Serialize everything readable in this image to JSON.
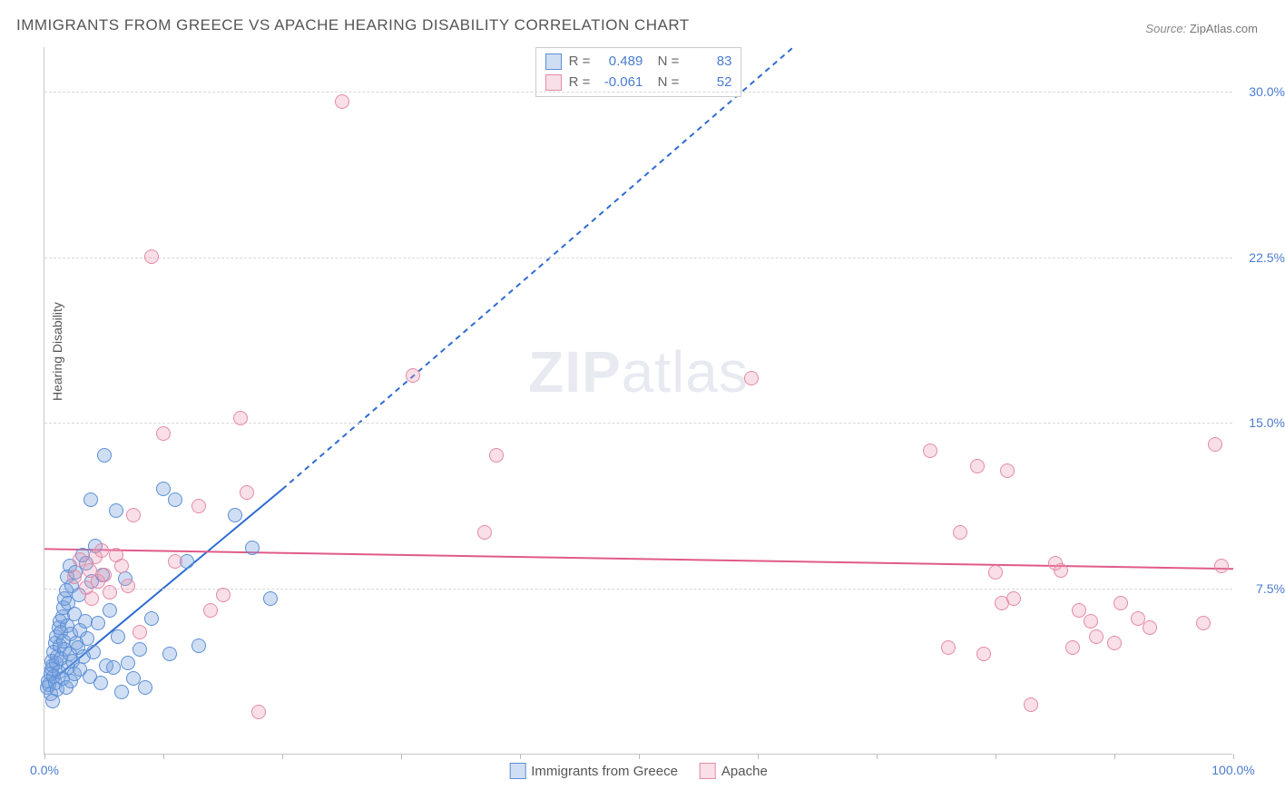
{
  "title": "IMMIGRANTS FROM GREECE VS APACHE HEARING DISABILITY CORRELATION CHART",
  "source_label": "Source:",
  "source_value": "ZipAtlas.com",
  "ylabel": "Hearing Disability",
  "watermark": {
    "bold": "ZIP",
    "rest": "atlas"
  },
  "chart": {
    "type": "scatter",
    "background_color": "#ffffff",
    "grid_color": "#d8d8d8",
    "axis_color": "#c8c8c8",
    "tick_label_color": "#4a7bd0",
    "xlim": [
      0,
      100
    ],
    "ylim": [
      0,
      32
    ],
    "ytick_values": [
      7.5,
      15.0,
      22.5,
      30.0
    ],
    "ytick_labels": [
      "7.5%",
      "15.0%",
      "22.5%",
      "30.0%"
    ],
    "xtick_values": [
      0,
      10,
      20,
      30,
      40,
      50,
      60,
      70,
      80,
      90,
      100
    ],
    "xtick_labels": {
      "0": "0.0%",
      "100": "100.0%"
    },
    "marker_radius": 8,
    "marker_stroke_width": 1.2,
    "series": [
      {
        "name": "Immigrants from Greece",
        "fill_color": "rgba(120,160,220,0.35)",
        "stroke_color": "#5b8fd6",
        "stats": {
          "R": "0.489",
          "N": "83"
        },
        "trend": {
          "solid": {
            "x1": 1,
            "y1": 3.5,
            "x2": 20,
            "y2": 12.0
          },
          "dashed": {
            "x1": 20,
            "y1": 12.0,
            "x2": 63,
            "y2": 32.0
          },
          "color": "#2e6bd1",
          "width": 2,
          "dash": "6,5"
        },
        "points": [
          [
            0.2,
            3.0
          ],
          [
            0.3,
            3.3
          ],
          [
            0.4,
            3.1
          ],
          [
            0.5,
            3.6
          ],
          [
            0.5,
            2.7
          ],
          [
            0.6,
            3.8
          ],
          [
            0.6,
            4.2
          ],
          [
            0.7,
            4.0
          ],
          [
            0.7,
            2.4
          ],
          [
            0.8,
            4.6
          ],
          [
            0.8,
            3.5
          ],
          [
            0.9,
            5.0
          ],
          [
            0.9,
            3.2
          ],
          [
            1.0,
            5.3
          ],
          [
            1.0,
            4.1
          ],
          [
            1.1,
            4.4
          ],
          [
            1.1,
            2.9
          ],
          [
            1.2,
            5.7
          ],
          [
            1.2,
            3.7
          ],
          [
            1.3,
            4.9
          ],
          [
            1.3,
            6.0
          ],
          [
            1.4,
            4.3
          ],
          [
            1.4,
            5.5
          ],
          [
            1.5,
            6.2
          ],
          [
            1.5,
            3.4
          ],
          [
            1.6,
            6.6
          ],
          [
            1.6,
            5.1
          ],
          [
            1.7,
            4.7
          ],
          [
            1.7,
            7.0
          ],
          [
            1.8,
            3.0
          ],
          [
            1.8,
            7.4
          ],
          [
            1.9,
            5.8
          ],
          [
            1.9,
            8.0
          ],
          [
            2.0,
            3.9
          ],
          [
            2.0,
            6.8
          ],
          [
            2.1,
            4.5
          ],
          [
            2.1,
            8.5
          ],
          [
            2.2,
            5.4
          ],
          [
            2.2,
            3.3
          ],
          [
            2.3,
            7.6
          ],
          [
            2.4,
            4.2
          ],
          [
            2.5,
            6.3
          ],
          [
            2.5,
            3.6
          ],
          [
            2.6,
            8.2
          ],
          [
            2.7,
            5.0
          ],
          [
            2.8,
            4.8
          ],
          [
            2.9,
            7.2
          ],
          [
            3.0,
            3.8
          ],
          [
            3.0,
            5.6
          ],
          [
            3.2,
            9.0
          ],
          [
            3.3,
            4.4
          ],
          [
            3.4,
            6.0
          ],
          [
            3.5,
            8.6
          ],
          [
            3.6,
            5.2
          ],
          [
            3.8,
            3.5
          ],
          [
            3.9,
            11.5
          ],
          [
            4.0,
            7.8
          ],
          [
            4.1,
            4.6
          ],
          [
            4.3,
            9.4
          ],
          [
            4.5,
            5.9
          ],
          [
            4.7,
            3.2
          ],
          [
            4.9,
            8.1
          ],
          [
            5.0,
            13.5
          ],
          [
            5.2,
            4.0
          ],
          [
            5.5,
            6.5
          ],
          [
            5.8,
            3.9
          ],
          [
            6.0,
            11.0
          ],
          [
            6.2,
            5.3
          ],
          [
            6.5,
            2.8
          ],
          [
            6.8,
            7.9
          ],
          [
            7.0,
            4.1
          ],
          [
            7.5,
            3.4
          ],
          [
            8.0,
            4.7
          ],
          [
            8.5,
            3.0
          ],
          [
            9.0,
            6.1
          ],
          [
            10.0,
            12.0
          ],
          [
            10.5,
            4.5
          ],
          [
            11.0,
            11.5
          ],
          [
            12.0,
            8.7
          ],
          [
            13.0,
            4.9
          ],
          [
            16.0,
            10.8
          ],
          [
            17.5,
            9.3
          ],
          [
            19.0,
            7.0
          ]
        ]
      },
      {
        "name": "Apache",
        "fill_color": "rgba(235,150,175,0.30)",
        "stroke_color": "#e48aa5",
        "stats": {
          "R": "-0.061",
          "N": "52"
        },
        "trend": {
          "solid": {
            "x1": 0,
            "y1": 9.3,
            "x2": 100,
            "y2": 8.4
          },
          "dashed": null,
          "color": "#e05a8a",
          "width": 2,
          "dash": null
        },
        "points": [
          [
            2.5,
            8.0
          ],
          [
            3.0,
            8.8
          ],
          [
            3.5,
            7.5
          ],
          [
            3.8,
            8.3
          ],
          [
            4.0,
            7.0
          ],
          [
            4.3,
            8.9
          ],
          [
            4.5,
            7.8
          ],
          [
            4.8,
            9.2
          ],
          [
            5.0,
            8.1
          ],
          [
            5.5,
            7.3
          ],
          [
            6.0,
            9.0
          ],
          [
            6.5,
            8.5
          ],
          [
            7.0,
            7.6
          ],
          [
            7.5,
            10.8
          ],
          [
            8.0,
            5.5
          ],
          [
            9.0,
            22.5
          ],
          [
            10.0,
            14.5
          ],
          [
            11.0,
            8.7
          ],
          [
            13.0,
            11.2
          ],
          [
            14.0,
            6.5
          ],
          [
            15.0,
            7.2
          ],
          [
            16.5,
            15.2
          ],
          [
            17.0,
            11.8
          ],
          [
            18.0,
            1.9
          ],
          [
            25.0,
            29.5
          ],
          [
            31.0,
            17.1
          ],
          [
            37.0,
            10.0
          ],
          [
            38.0,
            13.5
          ],
          [
            59.5,
            17.0
          ],
          [
            74.5,
            13.7
          ],
          [
            76.0,
            4.8
          ],
          [
            77.0,
            10.0
          ],
          [
            78.5,
            13.0
          ],
          [
            79.0,
            4.5
          ],
          [
            80.0,
            8.2
          ],
          [
            80.5,
            6.8
          ],
          [
            81.0,
            12.8
          ],
          [
            81.5,
            7.0
          ],
          [
            83.0,
            2.2
          ],
          [
            85.0,
            8.6
          ],
          [
            85.5,
            8.3
          ],
          [
            86.5,
            4.8
          ],
          [
            87.0,
            6.5
          ],
          [
            88.0,
            6.0
          ],
          [
            88.5,
            5.3
          ],
          [
            90.0,
            5.0
          ],
          [
            90.5,
            6.8
          ],
          [
            92.0,
            6.1
          ],
          [
            93.0,
            5.7
          ],
          [
            97.5,
            5.9
          ],
          [
            98.5,
            14.0
          ],
          [
            99.0,
            8.5
          ]
        ]
      }
    ],
    "bottom_legend": [
      {
        "swatch_fill": "rgba(120,160,220,0.35)",
        "swatch_stroke": "#5b8fd6",
        "label": "Immigrants from Greece"
      },
      {
        "swatch_fill": "rgba(235,150,175,0.30)",
        "swatch_stroke": "#e48aa5",
        "label": "Apache"
      }
    ],
    "stats_legend_labels": {
      "R": "R  =",
      "N": "N  ="
    }
  }
}
